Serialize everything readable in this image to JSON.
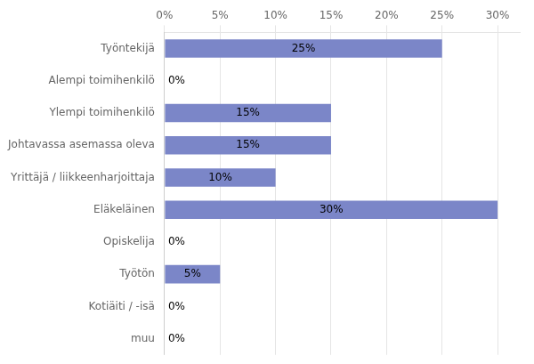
{
  "chart_data": {
    "type": "bar",
    "orientation": "horizontal",
    "categories": [
      "Työntekijä",
      "Alempi toimihenkilö",
      "Ylempi toimihenkilö",
      "Johtavassa asemassa oleva",
      "Yrittäjä / liikkeenharjoittaja",
      "Eläkeläinen",
      "Opiskelija",
      "Työtön",
      "Kotiäiti / -isä",
      "muu"
    ],
    "values": [
      25,
      0,
      15,
      15,
      10,
      30,
      0,
      5,
      0,
      0
    ],
    "value_labels": [
      "25%",
      "0%",
      "15%",
      "15%",
      "10%",
      "30%",
      "0%",
      "5%",
      "0%",
      "0%"
    ],
    "data_labels": true,
    "color": "#7b86c8",
    "xlim": [
      0,
      32
    ],
    "xticks": [
      {
        "value": 0,
        "label": "0%"
      },
      {
        "value": 5,
        "label": "5%"
      },
      {
        "value": 10,
        "label": "10%"
      },
      {
        "value": 15,
        "label": "15%"
      },
      {
        "value": 20,
        "label": "20%"
      },
      {
        "value": 25,
        "label": "25%"
      },
      {
        "value": 30,
        "label": "30%"
      }
    ],
    "grid": true
  }
}
